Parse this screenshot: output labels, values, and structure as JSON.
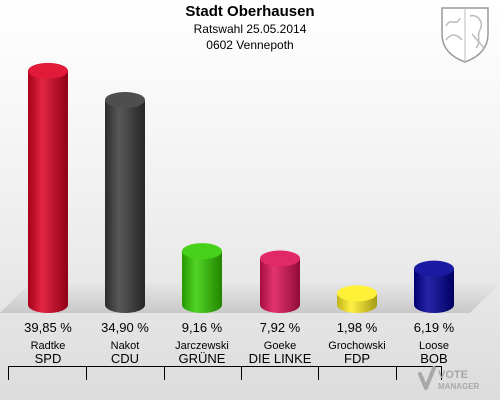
{
  "header": {
    "title": "Stadt Oberhausen",
    "subtitle": "Ratswahl 25.05.2014",
    "district": "0602 Vennepoth"
  },
  "watermark": {
    "line1": "VOTE",
    "line2": "MANAGER"
  },
  "chart_data": {
    "type": "bar",
    "title": "Stadt Oberhausen",
    "categories": [
      "SPD",
      "CDU",
      "GRÜNE",
      "DIE LINKE",
      "FDP",
      "BOB"
    ],
    "candidates": [
      "Radtke",
      "Nakot",
      "Jarczewski",
      "Goeke",
      "Grochowski",
      "Loose"
    ],
    "values": [
      39.85,
      34.9,
      9.16,
      7.92,
      1.98,
      6.19
    ],
    "value_labels": [
      "39,85 %",
      "34,90 %",
      "9,16 %",
      "7,92 %",
      "1,98 %",
      "6,19 %"
    ],
    "colors": [
      "#dd0022",
      "#3a3a3a",
      "#33cc00",
      "#dd1155",
      "#ffee22",
      "#000099"
    ],
    "ylim": [
      0,
      40
    ],
    "grid": false,
    "legend": "none"
  }
}
